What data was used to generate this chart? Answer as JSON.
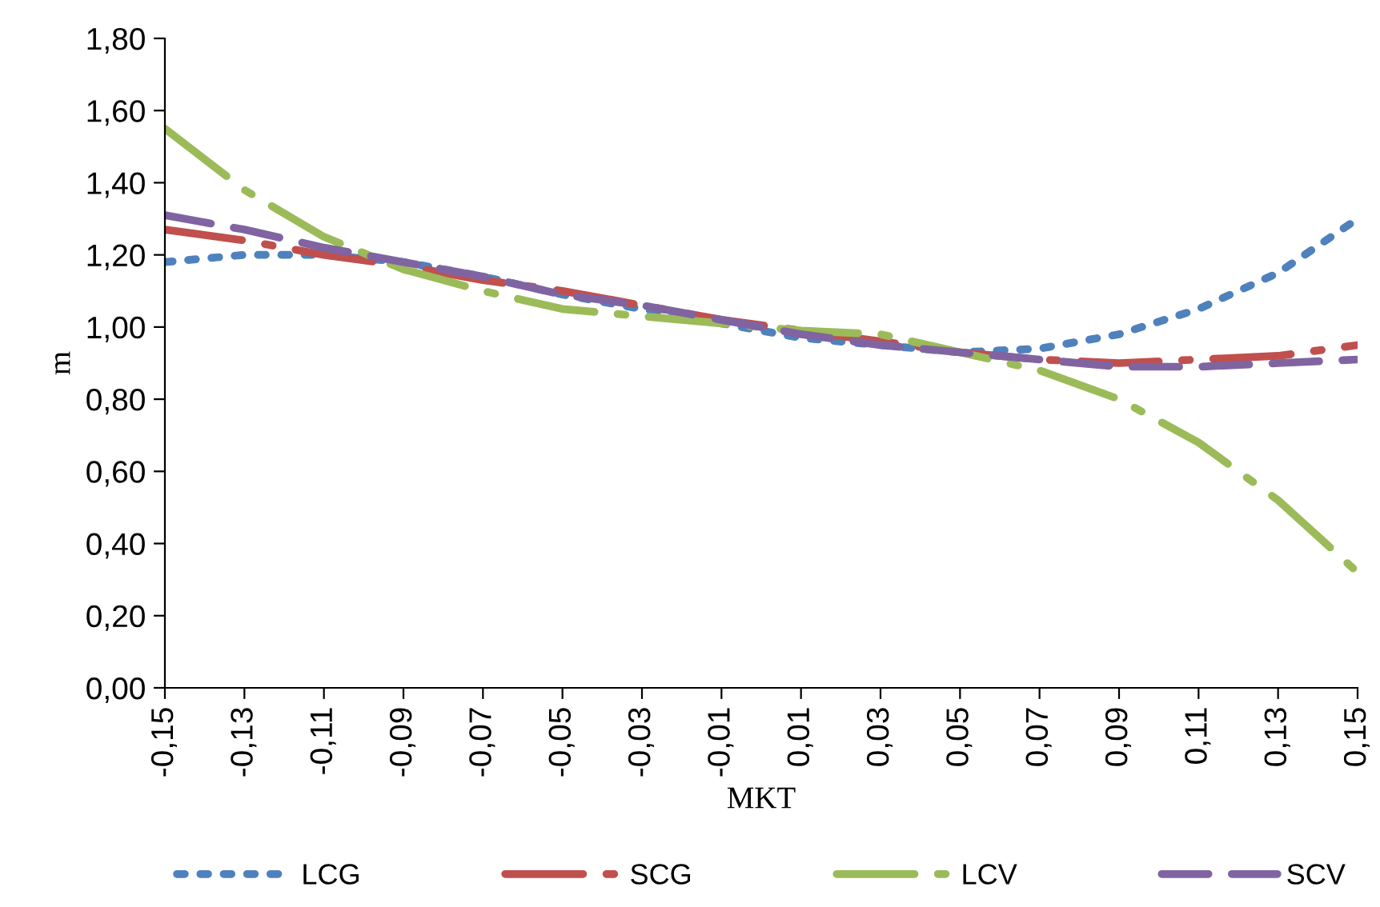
{
  "chart_data": {
    "type": "line",
    "xlabel": "MKT",
    "ylabel": "m",
    "x": [
      -0.15,
      -0.13,
      -0.11,
      -0.09,
      -0.07,
      -0.05,
      -0.03,
      -0.01,
      0.01,
      0.03,
      0.05,
      0.07,
      0.09,
      0.11,
      0.13,
      0.15
    ],
    "series": [
      {
        "name": "LCG",
        "color": "#4f81bd",
        "line_style": "dotted",
        "values": [
          1.18,
          1.2,
          1.2,
          1.18,
          1.14,
          1.09,
          1.05,
          1.01,
          0.97,
          0.95,
          0.93,
          0.94,
          0.98,
          1.05,
          1.15,
          1.3
        ]
      },
      {
        "name": "SCG",
        "color": "#c0504d",
        "line_style": "dashdot",
        "values": [
          1.27,
          1.24,
          1.2,
          1.17,
          1.13,
          1.1,
          1.06,
          1.02,
          0.99,
          0.96,
          0.93,
          0.91,
          0.9,
          0.91,
          0.92,
          0.95
        ]
      },
      {
        "name": "LCV",
        "color": "#9bbb59",
        "line_style": "dashdot",
        "values": [
          1.55,
          1.38,
          1.25,
          1.16,
          1.1,
          1.05,
          1.03,
          1.01,
          0.99,
          0.98,
          0.93,
          0.88,
          0.8,
          0.68,
          0.52,
          0.32
        ]
      },
      {
        "name": "SCV",
        "color": "#8064a2",
        "line_style": "dashed",
        "values": [
          1.31,
          1.27,
          1.22,
          1.18,
          1.14,
          1.09,
          1.06,
          1.02,
          0.98,
          0.95,
          0.93,
          0.91,
          0.89,
          0.89,
          0.9,
          0.91
        ]
      }
    ],
    "xlim": [
      -0.15,
      0.15
    ],
    "xticks": [
      {
        "value": -0.15,
        "label": "-0,15"
      },
      {
        "value": -0.13,
        "label": "-0,13"
      },
      {
        "value": -0.11,
        "label": "-0,11"
      },
      {
        "value": -0.09,
        "label": "-0,09"
      },
      {
        "value": -0.07,
        "label": "-0,07"
      },
      {
        "value": -0.05,
        "label": "-0,05"
      },
      {
        "value": -0.03,
        "label": "-0,03"
      },
      {
        "value": -0.01,
        "label": "-0,01"
      },
      {
        "value": 0.01,
        "label": "0,01"
      },
      {
        "value": 0.03,
        "label": "0,03"
      },
      {
        "value": 0.05,
        "label": "0,05"
      },
      {
        "value": 0.07,
        "label": "0,07"
      },
      {
        "value": 0.09,
        "label": "0,09"
      },
      {
        "value": 0.11,
        "label": "0,11"
      },
      {
        "value": 0.13,
        "label": "0,13"
      },
      {
        "value": 0.15,
        "label": "0,15"
      }
    ],
    "ylim": [
      0,
      1.8
    ],
    "yticks": [
      {
        "value": 0,
        "label": "0,00"
      },
      {
        "value": 0.2,
        "label": "0,20"
      },
      {
        "value": 0.4,
        "label": "0,40"
      },
      {
        "value": 0.6,
        "label": "0,60"
      },
      {
        "value": 0.8,
        "label": "0,80"
      },
      {
        "value": 1.0,
        "label": "1,00"
      },
      {
        "value": 1.2,
        "label": "1,20"
      },
      {
        "value": 1.4,
        "label": "1,40"
      },
      {
        "value": 1.6,
        "label": "1,60"
      },
      {
        "value": 1.8,
        "label": "1,80"
      }
    ],
    "grid": false,
    "legend": "bottom",
    "marker": "none"
  }
}
